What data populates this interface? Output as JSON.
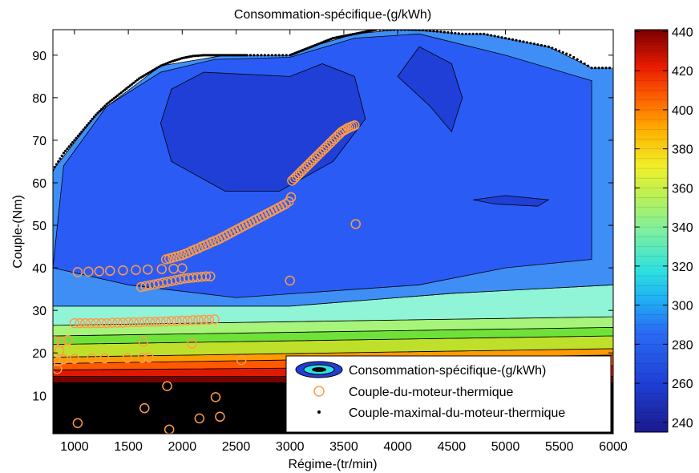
{
  "chart_data": {
    "type": "contour",
    "title": "Consommation-spécifique-(g/kWh)",
    "xlabel": "Régime-(tr/min)",
    "ylabel": "Couple-(Nm)",
    "xlim": [
      800,
      6000
    ],
    "ylim": [
      1,
      96
    ],
    "xticks": [
      1000,
      1500,
      2000,
      2500,
      3000,
      3500,
      4000,
      4500,
      5000,
      5500,
      6000
    ],
    "yticks": [
      10,
      20,
      30,
      40,
      50,
      60,
      70,
      80,
      90
    ],
    "colorbar": {
      "min": 235,
      "max": 441,
      "ticks": [
        240,
        260,
        280,
        300,
        320,
        340,
        360,
        380,
        400,
        420,
        440
      ],
      "colormap": "jet"
    },
    "legend": {
      "position": "bottom-right",
      "entries": [
        "Consommation-spécifique-(g/kWh)",
        "Couple-du-moteur-thermique",
        "Couple-maximal-du-moteur-thermique"
      ]
    },
    "bands": [
      {
        "low": 235,
        "high": 250,
        "color": "#1f3fd6"
      },
      {
        "low": 250,
        "high": 265,
        "color": "#2a5cf5"
      },
      {
        "low": 265,
        "high": 280,
        "color": "#3f8ef5"
      },
      {
        "low": 280,
        "high": 295,
        "color": "#5ed8f5"
      },
      {
        "low": 295,
        "high": 310,
        "color": "#8ff5d6"
      },
      {
        "low": 310,
        "high": 325,
        "color": "#a6f57a"
      },
      {
        "low": 325,
        "high": 340,
        "color": "#6fe23a"
      },
      {
        "low": 340,
        "high": 355,
        "color": "#bfe02a"
      },
      {
        "low": 355,
        "high": 370,
        "color": "#ffd21a"
      },
      {
        "low": 370,
        "high": 385,
        "color": "#ff9a00"
      },
      {
        "low": 385,
        "high": 400,
        "color": "#ff5a00"
      },
      {
        "low": 400,
        "high": 420,
        "color": "#e01a00"
      },
      {
        "low": 420,
        "high": 441,
        "color": "#7a0000"
      }
    ],
    "max_torque_curve": {
      "x": [
        800,
        900,
        1000,
        1100,
        1200,
        1300,
        1400,
        1500,
        1600,
        1700,
        1800,
        1900,
        2000,
        2100,
        2200,
        2300,
        2400,
        2500,
        2600,
        2800,
        3000,
        3100,
        3200,
        3300,
        3400,
        3500,
        3600,
        3700,
        3800,
        4000,
        4200,
        4400,
        4600,
        4800,
        5000,
        5200,
        5400,
        5600,
        5800,
        6000
      ],
      "y": [
        63,
        67,
        70,
        73,
        76,
        78.5,
        80.5,
        82.5,
        84.5,
        86,
        87.5,
        88.5,
        89.3,
        89.8,
        90,
        90,
        90,
        90,
        90,
        90,
        90,
        91,
        92,
        93,
        94,
        94.5,
        95,
        95.5,
        96,
        96,
        96,
        95.5,
        95,
        95,
        94,
        93,
        92,
        90,
        87,
        87
      ]
    },
    "engine_torque_points": {
      "x": [
        3020,
        3040,
        3060,
        3080,
        3100,
        3120,
        3140,
        3160,
        3180,
        3200,
        3220,
        3240,
        3260,
        3280,
        3300,
        3320,
        3340,
        3360,
        3380,
        3400,
        3420,
        3440,
        3460,
        3480,
        3500,
        3520,
        3540,
        3560,
        3580,
        3600,
        1850,
        1880,
        1910,
        1940,
        1970,
        2000,
        2030,
        2060,
        2090,
        2120,
        2150,
        2180,
        2210,
        2240,
        2270,
        2300,
        2330,
        2360,
        2390,
        2420,
        2450,
        2480,
        2510,
        2540,
        2570,
        2600,
        2630,
        2660,
        2690,
        2720,
        2750,
        2780,
        2810,
        2840,
        2870,
        2900,
        2930,
        2960,
        2990,
        3010,
        1620,
        1660,
        1700,
        1740,
        1780,
        1820,
        1860,
        1900,
        1940,
        1980,
        2020,
        2060,
        2100,
        2140,
        2180,
        2220,
        2260,
        1030,
        1130,
        1230,
        1330,
        1450,
        1570,
        1680,
        1810,
        1920,
        2000,
        1000,
        1050,
        1100,
        1150,
        1200,
        1250,
        1300,
        1350,
        1400,
        1450,
        1500,
        1550,
        1600,
        1650,
        1700,
        1750,
        1800,
        1850,
        1900,
        1950,
        2000,
        2050,
        2100,
        2150,
        2200,
        2250,
        2300,
        820,
        840,
        850,
        860,
        880,
        900,
        940,
        1000,
        1160,
        1280,
        1490,
        1630,
        1640,
        1690,
        2090,
        2550,
        3000,
        3610,
        1030,
        1650,
        1860,
        1880,
        2160,
        2310,
        2350
      ],
      "y": [
        60.5,
        61,
        61.5,
        62,
        62.5,
        63,
        63.5,
        64,
        64.5,
        65,
        65.5,
        66,
        66.5,
        67,
        67.5,
        68,
        68.5,
        69,
        69.5,
        70,
        70.5,
        71,
        71.5,
        72,
        72.3,
        72.6,
        72.9,
        73.1,
        73.3,
        73.5,
        42,
        42.2,
        42.4,
        42.6,
        42.8,
        43,
        43.3,
        43.6,
        44,
        44.3,
        44.6,
        45,
        45.3,
        45.6,
        46,
        46.3,
        46.6,
        47,
        47.4,
        47.8,
        48.2,
        48.6,
        49,
        49.4,
        49.8,
        50.2,
        50.6,
        51,
        51.4,
        51.8,
        52.2,
        52.6,
        53,
        53.4,
        53.8,
        54.2,
        54.6,
        55,
        55.6,
        56.6,
        35.5,
        35.7,
        35.9,
        36.1,
        36.3,
        36.5,
        36.7,
        36.9,
        37.1,
        37.3,
        37.5,
        37.6,
        37.7,
        37.8,
        37.9,
        38,
        38,
        39,
        39.1,
        39.2,
        39.3,
        39.4,
        39.5,
        39.6,
        39.7,
        39.8,
        39.9,
        27,
        27,
        27,
        27,
        27,
        27,
        27,
        27.1,
        27.1,
        27.1,
        27.2,
        27.2,
        27.2,
        27.3,
        27.3,
        27.3,
        27.4,
        27.4,
        27.5,
        27.5,
        27.6,
        27.6,
        27.7,
        27.7,
        27.8,
        27.8,
        27.9,
        22.8,
        16.2,
        18,
        20.5,
        22.6,
        18.5,
        23,
        18.6,
        18.7,
        18.7,
        18.8,
        18.8,
        22.6,
        18.9,
        22.2,
        18.3,
        37,
        50.3,
        3.5,
        7,
        12.2,
        2,
        4.6,
        9.6,
        5
      ],
      "color": "#ff9a4a"
    }
  }
}
